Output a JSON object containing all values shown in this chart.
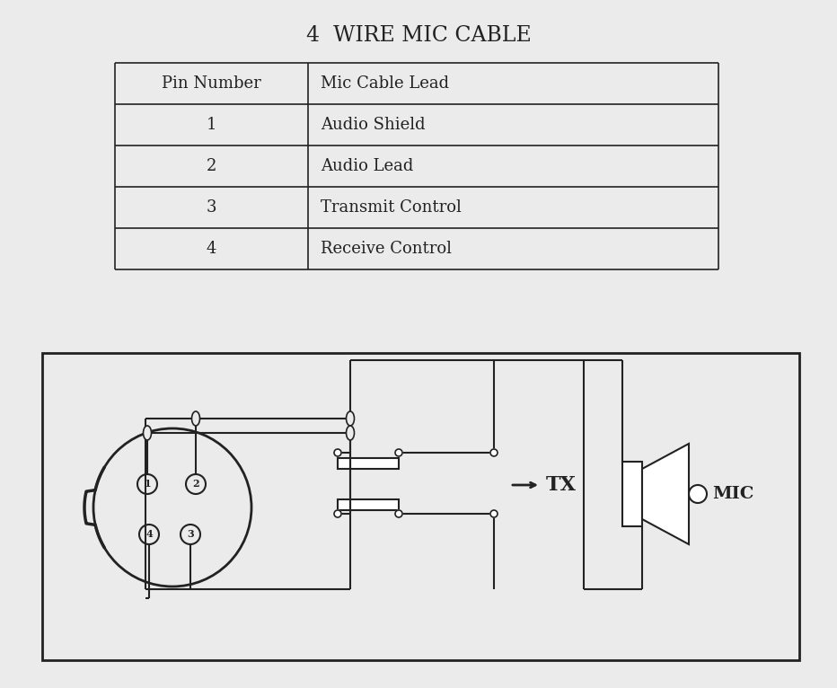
{
  "title": "4  WIRE MIC CABLE",
  "title_fontsize": 17,
  "bg_color": "#ebebeb",
  "table_headers": [
    "Pin Number",
    "Mic Cable Lead"
  ],
  "table_rows": [
    [
      "1",
      "Audio Shield"
    ],
    [
      "2",
      "Audio Lead"
    ],
    [
      "3",
      "Transmit Control"
    ],
    [
      "4",
      "Receive Control"
    ]
  ],
  "line_color": "#222222",
  "text_color": "#222222",
  "fig_w": 9.32,
  "fig_h": 7.66,
  "dpi": 100
}
